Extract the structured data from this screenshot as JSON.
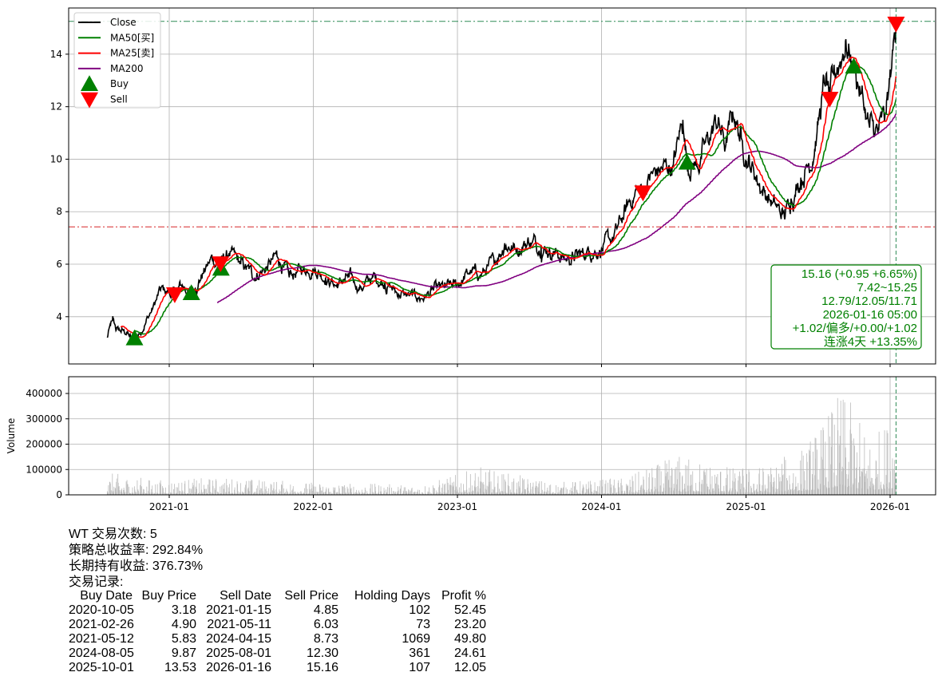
{
  "chart_data": [
    {
      "type": "line",
      "panel": "price",
      "ylim": [
        2.2,
        15.76
      ],
      "yticks": [
        4,
        6,
        8,
        10,
        12,
        14
      ],
      "xlim": [
        "2020-04-15",
        "2026-04-24"
      ],
      "xticks": [
        "2021-01",
        "2022-01",
        "2023-01",
        "2024-01",
        "2025-01",
        "2026-01"
      ],
      "grid": true,
      "legend_position": "top-left",
      "legend": [
        {
          "label": "Close",
          "color": "#000000",
          "kind": "line"
        },
        {
          "label": "MA50[买]",
          "color": "#008000",
          "kind": "line"
        },
        {
          "label": "MA25[卖]",
          "color": "#ff0000",
          "kind": "line"
        },
        {
          "label": "MA200",
          "color": "#800080",
          "kind": "line"
        },
        {
          "label": "Buy",
          "color": "#008000",
          "kind": "triangle-up"
        },
        {
          "label": "Sell",
          "color": "#ff0000",
          "kind": "triangle-down"
        }
      ],
      "close_keypoints": [
        [
          "2020-07-28",
          3.2
        ],
        [
          "2020-08-10",
          3.85
        ],
        [
          "2020-08-20",
          3.5
        ],
        [
          "2020-09-15",
          3.4
        ],
        [
          "2020-10-05",
          3.0
        ],
        [
          "2020-10-25",
          3.6
        ],
        [
          "2020-11-20",
          4.3
        ],
        [
          "2020-12-10",
          5.0
        ],
        [
          "2021-01-15",
          4.85
        ],
        [
          "2021-02-01",
          5.2
        ],
        [
          "2021-02-26",
          4.9
        ],
        [
          "2021-03-20",
          5.5
        ],
        [
          "2021-04-20",
          6.2
        ],
        [
          "2021-05-11",
          6.03
        ],
        [
          "2021-06-01",
          6.4
        ],
        [
          "2021-07-01",
          6.0
        ],
        [
          "2021-08-01",
          5.6
        ],
        [
          "2021-09-01",
          5.8
        ],
        [
          "2021-10-01",
          6.3
        ],
        [
          "2021-11-01",
          5.5
        ],
        [
          "2021-12-01",
          5.8
        ],
        [
          "2022-01-01",
          5.9
        ],
        [
          "2022-02-01",
          5.5
        ],
        [
          "2022-03-01",
          5.2
        ],
        [
          "2022-04-01",
          5.5
        ],
        [
          "2022-05-01",
          5.1
        ],
        [
          "2022-06-01",
          5.5
        ],
        [
          "2022-07-01",
          5.3
        ],
        [
          "2022-08-01",
          4.9
        ],
        [
          "2022-09-01",
          4.8
        ],
        [
          "2022-10-01",
          4.7
        ],
        [
          "2022-11-01",
          5.0
        ],
        [
          "2022-12-01",
          5.1
        ],
        [
          "2023-01-01",
          5.2
        ],
        [
          "2023-02-01",
          5.7
        ],
        [
          "2023-03-01",
          5.6
        ],
        [
          "2023-04-01",
          6.0
        ],
        [
          "2023-05-01",
          6.8
        ],
        [
          "2023-06-01",
          6.6
        ],
        [
          "2023-07-01",
          6.9
        ],
        [
          "2023-08-01",
          6.7
        ],
        [
          "2023-09-01",
          6.5
        ],
        [
          "2023-10-01",
          6.2
        ],
        [
          "2023-11-01",
          6.3
        ],
        [
          "2023-12-01",
          6.5
        ],
        [
          "2024-01-01",
          6.6
        ],
        [
          "2024-02-01",
          7.0
        ],
        [
          "2024-03-01",
          8.0
        ],
        [
          "2024-04-01",
          8.9
        ],
        [
          "2024-04-15",
          8.73
        ],
        [
          "2024-05-01",
          9.3
        ],
        [
          "2024-06-01",
          9.6
        ],
        [
          "2024-07-01",
          9.8
        ],
        [
          "2024-07-25",
          11.5
        ],
        [
          "2024-08-05",
          9.87
        ],
        [
          "2024-09-01",
          9.8
        ],
        [
          "2024-10-01",
          10.8
        ],
        [
          "2024-10-20",
          11.5
        ],
        [
          "2024-11-10",
          10.5
        ],
        [
          "2024-12-01",
          11.8
        ],
        [
          "2024-12-20",
          10.8
        ],
        [
          "2025-01-15",
          9.7
        ],
        [
          "2025-02-15",
          8.8
        ],
        [
          "2025-03-15",
          8.2
        ],
        [
          "2025-04-08",
          7.8
        ],
        [
          "2025-04-25",
          8.5
        ],
        [
          "2025-05-20",
          9.3
        ],
        [
          "2025-06-15",
          10.0
        ],
        [
          "2025-07-05",
          11.5
        ],
        [
          "2025-07-20",
          13.0
        ],
        [
          "2025-08-01",
          12.3
        ],
        [
          "2025-08-20",
          13.5
        ],
        [
          "2025-09-10",
          14.5
        ],
        [
          "2025-10-01",
          13.53
        ],
        [
          "2025-10-20",
          12.5
        ],
        [
          "2025-11-10",
          11.2
        ],
        [
          "2025-12-01",
          11.0
        ],
        [
          "2025-12-20",
          11.5
        ],
        [
          "2026-01-05",
          13.5
        ],
        [
          "2026-01-16",
          15.16
        ]
      ],
      "moving_averages": [
        {
          "name": "MA25",
          "window": 25,
          "color": "#ff0000"
        },
        {
          "name": "MA50",
          "window": 50,
          "color": "#008000"
        },
        {
          "name": "MA200",
          "window": 200,
          "color": "#800080"
        }
      ],
      "buy_signals": [
        [
          "2020-10-05",
          3.18
        ],
        [
          "2021-02-26",
          4.9
        ],
        [
          "2021-05-12",
          5.83
        ],
        [
          "2024-08-05",
          9.87
        ],
        [
          "2025-10-01",
          13.53
        ]
      ],
      "sell_signals": [
        [
          "2021-01-15",
          4.85
        ],
        [
          "2021-05-11",
          6.03
        ],
        [
          "2024-04-15",
          8.73
        ],
        [
          "2025-08-01",
          12.3
        ],
        [
          "2026-01-16",
          15.16
        ]
      ],
      "hlines": [
        {
          "value": 7.42,
          "color": "#d62728",
          "style": "dashdot"
        },
        {
          "value": 15.25,
          "color": "#2e8b57",
          "style": "dashdot"
        }
      ],
      "vline": {
        "date": "2026-01-16",
        "color": "#2e8b57",
        "style": "dashed"
      }
    },
    {
      "type": "bar",
      "panel": "volume",
      "ylabel": "Volume",
      "ylim": [
        0,
        470000
      ],
      "yticks": [
        0,
        100000,
        200000,
        300000,
        400000
      ],
      "grid": true,
      "bar_color": "#bbbbbb",
      "volume_levels": [
        [
          "2020-07-28",
          90000
        ],
        [
          "2020-12-01",
          60000
        ],
        [
          "2021-06-01",
          70000
        ],
        [
          "2022-01-01",
          50000
        ],
        [
          "2022-10-01",
          40000
        ],
        [
          "2023-03-01",
          110000
        ],
        [
          "2023-09-01",
          50000
        ],
        [
          "2024-03-01",
          70000
        ],
        [
          "2024-07-15",
          160000
        ],
        [
          "2024-12-01",
          110000
        ],
        [
          "2025-03-01",
          120000
        ],
        [
          "2025-06-01",
          200000
        ],
        [
          "2025-07-15",
          300000
        ],
        [
          "2025-09-01",
          420000
        ],
        [
          "2025-11-15",
          230000
        ],
        [
          "2026-01-16",
          340000
        ]
      ]
    }
  ],
  "annotation": {
    "lines": [
      "15.16 (+0.95 +6.65%)",
      "7.42~15.25",
      "12.79/12.05/11.71",
      "2026-01-16 05:00",
      "+1.02/偏多/+0.00/+1.02",
      "连涨4天 +13.35%"
    ]
  },
  "summary": {
    "trade_count": "WT 交易次数: 5",
    "strategy_return": "策略总收益率: 292.84%",
    "buy_hold_return": "长期持有收益: 376.73%",
    "records_title": "交易记录:"
  },
  "trades": {
    "headers": [
      "Buy Date",
      "Buy Price",
      "Sell Date",
      "Sell Price",
      "Holding Days",
      "Profit %"
    ],
    "rows": [
      [
        "2020-10-05",
        "3.18",
        "2021-01-15",
        "4.85",
        "102",
        "52.45"
      ],
      [
        "2021-02-26",
        "4.90",
        "2021-05-11",
        "6.03",
        "73",
        "23.20"
      ],
      [
        "2021-05-12",
        "5.83",
        "2024-04-15",
        "8.73",
        "1069",
        "49.80"
      ],
      [
        "2024-08-05",
        "9.87",
        "2025-08-01",
        "12.30",
        "361",
        "24.61"
      ],
      [
        "2025-10-01",
        "13.53",
        "2026-01-16",
        "15.16",
        "107",
        "12.05"
      ]
    ]
  }
}
